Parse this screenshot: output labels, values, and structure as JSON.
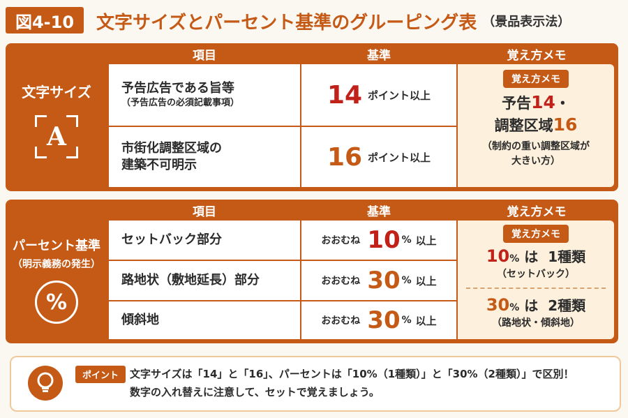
{
  "header": {
    "figure_label": "図4-10",
    "title": "文字サイズとパーセント基準のグルーピング表",
    "subtitle": "（景品表示法）"
  },
  "columns": {
    "item": "項目",
    "standard": "基準",
    "memo": "覚え方メモ"
  },
  "text_size": {
    "label": "文字サイズ",
    "icon_letter": "A",
    "rows": [
      {
        "item": "予告広告である旨等",
        "item_note": "（予告広告の必須記載事項）",
        "value": "14",
        "unit": "ポイント以上"
      },
      {
        "item_line1": "市街化調整区域の",
        "item_line2": "建築不可明示",
        "value": "16",
        "unit": "ポイント以上"
      }
    ],
    "memo": {
      "tag": "覚え方メモ",
      "line1_text": "予告",
      "line1_num": "14",
      "line1_suffix": "・",
      "line2_text": "調整区域",
      "line2_num": "16",
      "note_line1": "（制約の重い調整区域が",
      "note_line2": "大きい方）"
    }
  },
  "percent": {
    "label": "パーセント基準",
    "sub_label": "（明示義務の発生）",
    "icon_symbol": "%",
    "rows": [
      {
        "item": "セットバック部分",
        "prefix": "おおむね",
        "value": "10",
        "percent": "%",
        "unit": "以上"
      },
      {
        "item": "路地状（敷地延長）部分",
        "prefix": "おおむね",
        "value": "30",
        "percent": "%",
        "unit": "以上"
      },
      {
        "item": "傾斜地",
        "prefix": "おおむね",
        "value": "30",
        "percent": "%",
        "unit": "以上"
      }
    ],
    "memo": {
      "tag": "覚え方メモ",
      "g1_num": "10",
      "g1_pct": "%",
      "g1_wa": "は",
      "g1_count": "1種類",
      "g1_note": "（セットバック）",
      "g2_num": "30",
      "g2_pct": "%",
      "g2_wa": "は",
      "g2_count": "2種類",
      "g2_note": "（路地状・傾斜地）"
    }
  },
  "point": {
    "tag": "ポイント",
    "line1": "文字サイズは「14」と「16」、パーセントは「10%（1種類）」と「30%（2種類）」で区別！",
    "line2": "数字の入れ替えに注意して、セットで覚えましょう。"
  },
  "colors": {
    "accent": "#c45a16",
    "red": "#c0221a",
    "memo_bg": "#fdf0dc"
  },
  "icons": {
    "text_size": "font-size-icon",
    "percent": "percent-icon",
    "point": "lightbulb-icon"
  }
}
